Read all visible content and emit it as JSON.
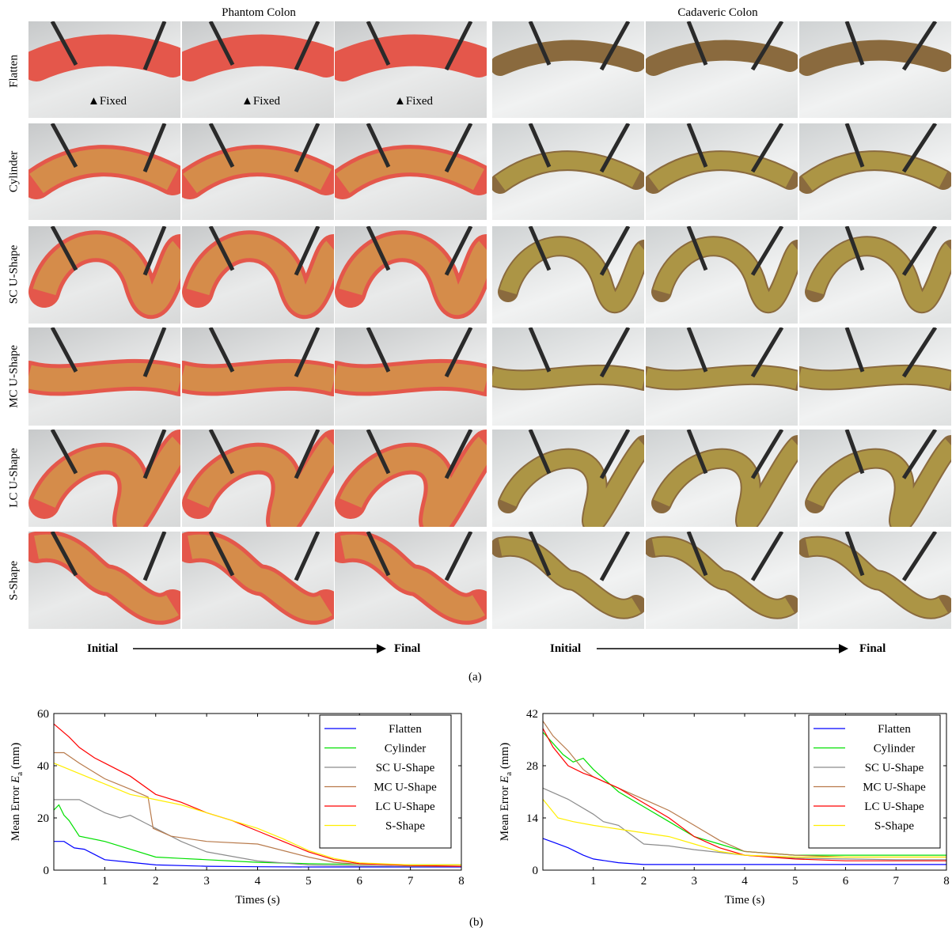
{
  "figure": {
    "col_headers": [
      "Phantom Colon",
      "Cadaveric Colon"
    ],
    "row_labels": [
      "Flatten",
      "Cylinder",
      "SC U-Shape",
      "MC U-Shape",
      "LC U-Shape",
      "S-Shape"
    ],
    "fixed_label": "Fixed",
    "progression": {
      "start": "Initial",
      "end": "Final"
    },
    "caption_a": "(a)",
    "caption_b": "(b)"
  },
  "colors": {
    "phantom_tissue": "#e4574b",
    "cadaver_tissue": "#8a6a3e",
    "overlay": "#c9b84a",
    "Flatten": "#0000ff",
    "Cylinder": "#00e000",
    "SC U-Shape": "#8c8c8c",
    "MC U-Shape": "#b87a4b",
    "LC U-Shape": "#ff0000",
    "S-Shape": "#ffee00"
  },
  "chart_data": [
    {
      "type": "line",
      "xlabel": "Times (s)",
      "ylabel": "Mean Error E_a (mm)",
      "ylim": [
        0,
        60
      ],
      "xlim": [
        0,
        8
      ],
      "yticks": [
        0,
        20,
        40,
        60
      ],
      "xticks": [
        1,
        2,
        3,
        4,
        5,
        6,
        7,
        8
      ],
      "legend": "top-right",
      "series": [
        {
          "name": "Flatten",
          "x": [
            0,
            0.2,
            0.4,
            0.6,
            0.8,
            1.0,
            1.5,
            2,
            3,
            4,
            5,
            6,
            7,
            8
          ],
          "values": [
            11,
            11,
            8.5,
            8,
            6,
            4,
            3,
            2,
            1.5,
            1.3,
            1.2,
            1.2,
            1.2,
            1.2
          ]
        },
        {
          "name": "Cylinder",
          "x": [
            0,
            0.1,
            0.2,
            0.3,
            0.5,
            1.0,
            1.5,
            2,
            2.5,
            3,
            4,
            5,
            6,
            7,
            8
          ],
          "values": [
            23,
            25,
            21,
            19,
            13,
            11,
            8,
            5,
            4.5,
            4,
            3,
            2.5,
            2.2,
            2,
            2
          ]
        },
        {
          "name": "SC U-Shape",
          "x": [
            0,
            0.5,
            1.0,
            1.3,
            1.5,
            1.8,
            2,
            2.5,
            3,
            4,
            5,
            6,
            7,
            8
          ],
          "values": [
            27,
            27,
            22,
            20,
            21,
            18,
            16,
            11,
            7,
            3.5,
            2,
            1.6,
            1.5,
            1.5
          ]
        },
        {
          "name": "MC U-Shape",
          "x": [
            0,
            0.2,
            0.5,
            1.0,
            1.5,
            1.85,
            1.95,
            2.3,
            3,
            4,
            5,
            5.5,
            6,
            7,
            8
          ],
          "values": [
            45,
            45,
            41,
            35,
            31,
            28,
            16,
            13,
            11,
            10,
            5,
            3,
            2.2,
            2,
            2
          ]
        },
        {
          "name": "LC U-Shape",
          "x": [
            0,
            0.3,
            0.5,
            0.8,
            1.0,
            1.5,
            2,
            2.5,
            3,
            3.5,
            4,
            4.5,
            5,
            5.5,
            6,
            7,
            8
          ],
          "values": [
            56,
            51,
            47,
            43,
            41,
            36,
            29,
            26,
            22,
            19,
            15,
            11,
            7,
            4,
            2.5,
            1.8,
            1.5
          ]
        },
        {
          "name": "S-Shape",
          "x": [
            0,
            0.5,
            1.0,
            1.5,
            2,
            2.5,
            3,
            3.5,
            4,
            4.5,
            5,
            5.5,
            6,
            7,
            8
          ],
          "values": [
            41,
            37,
            33,
            29,
            27,
            25,
            22,
            19,
            16,
            12,
            7.5,
            4.5,
            2.8,
            2,
            2
          ]
        }
      ]
    },
    {
      "type": "line",
      "xlabel": "Time (s)",
      "ylabel": "Mean Error E_a (mm)",
      "ylim": [
        0,
        42
      ],
      "xlim": [
        0,
        8
      ],
      "yticks": [
        0,
        14,
        28,
        42
      ],
      "xticks": [
        1,
        2,
        3,
        4,
        5,
        6,
        7,
        8
      ],
      "legend": "top-right",
      "series": [
        {
          "name": "Flatten",
          "x": [
            0,
            0.2,
            0.5,
            0.8,
            1.0,
            1.5,
            2,
            3,
            4,
            5,
            6,
            7,
            8
          ],
          "values": [
            8.5,
            7.5,
            6,
            4,
            3,
            2,
            1.5,
            1.5,
            1.5,
            1.5,
            1.5,
            1.5,
            1.5
          ]
        },
        {
          "name": "Cylinder",
          "x": [
            0,
            0.2,
            0.4,
            0.6,
            0.8,
            1.0,
            1.5,
            2,
            2.5,
            3,
            3.5,
            4,
            5,
            6,
            7,
            8
          ],
          "values": [
            37,
            34,
            31,
            29,
            30,
            27,
            21,
            17,
            13,
            9,
            7,
            5,
            4,
            4,
            4,
            4
          ]
        },
        {
          "name": "SC U-Shape",
          "x": [
            0,
            0.5,
            1.0,
            1.2,
            1.5,
            1.8,
            2,
            2.5,
            3,
            4,
            5,
            6,
            7,
            8
          ],
          "values": [
            22,
            19,
            15,
            13,
            12,
            9,
            7,
            6.5,
            5.5,
            4,
            3.2,
            3,
            2.8,
            2.8
          ]
        },
        {
          "name": "MC U-Shape",
          "x": [
            0,
            0.2,
            0.5,
            0.8,
            1.0,
            1.5,
            2,
            2.5,
            3,
            3.5,
            4,
            5,
            6,
            7,
            8
          ],
          "values": [
            40,
            36,
            32,
            27,
            25,
            22,
            19,
            16,
            12,
            8,
            5,
            4,
            3.5,
            3.5,
            3.5
          ]
        },
        {
          "name": "LC U-Shape",
          "x": [
            0,
            0.2,
            0.5,
            0.8,
            1.0,
            1.5,
            2,
            2.5,
            3,
            3.5,
            4,
            5,
            6,
            7,
            8
          ],
          "values": [
            38,
            33,
            28,
            26,
            25,
            22,
            18,
            14,
            9,
            6,
            4,
            3,
            2.5,
            2.5,
            2.5
          ]
        },
        {
          "name": "S-Shape",
          "x": [
            0,
            0.3,
            0.6,
            1.0,
            1.5,
            2,
            2.5,
            3,
            3.5,
            4,
            5,
            6,
            7,
            8
          ],
          "values": [
            19,
            14,
            13,
            12,
            11,
            10,
            9,
            7,
            5,
            4,
            3.5,
            3.5,
            3.5,
            3.5
          ]
        }
      ]
    }
  ]
}
